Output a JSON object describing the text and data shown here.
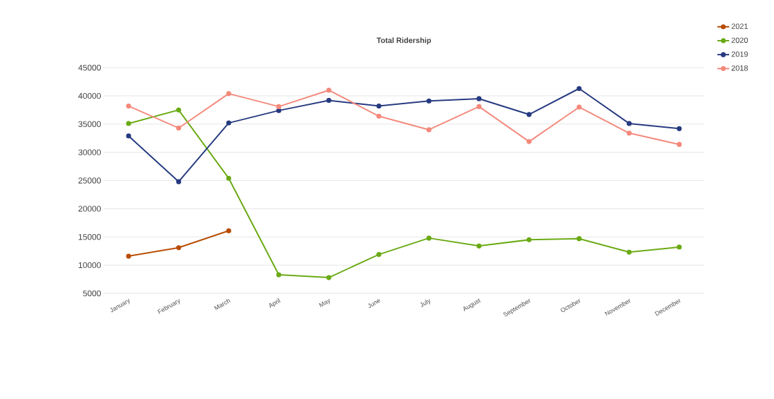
{
  "chart_data": {
    "type": "line",
    "title": "Total Ridership",
    "categories": [
      "January",
      "February",
      "March",
      "April",
      "May",
      "June",
      "July",
      "August",
      "September",
      "October",
      "November",
      "December"
    ],
    "series": [
      {
        "name": "2021",
        "color": "#b84c00",
        "values": [
          11600,
          13100,
          16100,
          null,
          null,
          null,
          null,
          null,
          null,
          null,
          null,
          null
        ]
      },
      {
        "name": "2020",
        "color": "#6aaa14",
        "values": [
          35100,
          37500,
          25400,
          8300,
          7800,
          11900,
          14800,
          13400,
          14500,
          14700,
          12300,
          13200
        ]
      },
      {
        "name": "2019",
        "color": "#263a80",
        "values": [
          32900,
          24800,
          35200,
          37400,
          39200,
          38200,
          39100,
          39500,
          36700,
          41300,
          35100,
          34200
        ]
      },
      {
        "name": "2018",
        "color": "#f4897b",
        "values": [
          38200,
          34300,
          40400,
          38100,
          41000,
          36400,
          34000,
          38100,
          31900,
          38000,
          33400,
          31400
        ]
      }
    ],
    "ylim": [
      5000,
      45000
    ],
    "yticks": [
      5000,
      10000,
      15000,
      20000,
      25000,
      30000,
      35000,
      40000,
      45000
    ],
    "grid": "y",
    "legend": "top right",
    "marker": "circle",
    "line_style": "solid"
  }
}
